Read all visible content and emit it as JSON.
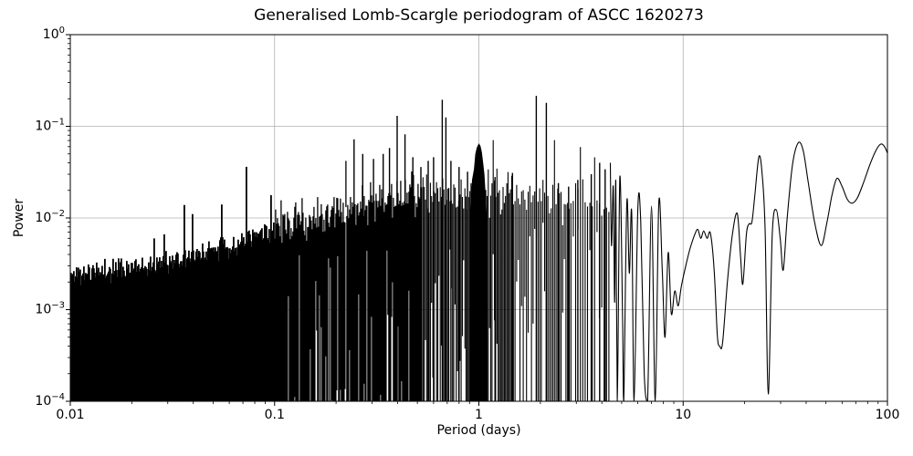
{
  "chart_data": {
    "type": "line",
    "title": "Generalised Lomb-Scargle periodogram of ASCC 1620273",
    "xlabel": "Period (days)",
    "ylabel": "Power",
    "x_scale": "log",
    "y_scale": "log",
    "xlim": [
      0.01,
      100
    ],
    "ylim": [
      0.0001,
      1
    ],
    "grid": true,
    "legend": null,
    "line_color": "#000000",
    "grid_color": "#b0b0b0",
    "background": "#ffffff",
    "x_ticks": {
      "values": [
        0.01,
        0.1,
        1,
        10,
        100
      ],
      "labels": [
        "0.01",
        "0.1",
        "1",
        "10",
        "100"
      ]
    },
    "y_ticks": {
      "exponents": [
        0,
        -1,
        -2,
        -3,
        -4
      ],
      "labels": [
        "0",
        "−1",
        "−2",
        "−3",
        "−4"
      ]
    },
    "noise": {
      "seed": 11,
      "range_days": [
        0.01,
        4.35
      ],
      "envelope_log10": [
        [
          -2.0,
          -2.62
        ],
        [
          -1.8,
          -2.56
        ],
        [
          -1.6,
          -2.5
        ],
        [
          -1.4,
          -2.4
        ],
        [
          -1.2,
          -2.3
        ],
        [
          -1.0,
          -2.12
        ],
        [
          -0.8,
          -1.98
        ],
        [
          -0.6,
          -1.86
        ],
        [
          -0.45,
          -1.8
        ],
        [
          -0.3,
          -1.76
        ],
        [
          -0.15,
          -1.74
        ],
        [
          0.0,
          -1.74
        ],
        [
          0.15,
          -1.78
        ],
        [
          0.3,
          -1.8
        ],
        [
          0.42,
          -1.86
        ],
        [
          0.52,
          -1.8
        ],
        [
          0.638,
          -1.92
        ]
      ]
    },
    "major_peaks": [
      [
        0.245,
        0.072
      ],
      [
        0.27,
        0.05
      ],
      [
        0.305,
        0.044
      ],
      [
        0.34,
        0.05
      ],
      [
        0.365,
        0.058
      ],
      [
        0.398,
        0.13
      ],
      [
        0.435,
        0.082
      ],
      [
        0.475,
        0.046
      ],
      [
        0.52,
        0.036
      ],
      [
        0.565,
        0.042
      ],
      [
        0.6,
        0.046
      ],
      [
        0.662,
        0.195
      ],
      [
        0.69,
        0.125
      ],
      [
        0.73,
        0.042
      ],
      [
        0.8,
        0.036
      ],
      [
        0.88,
        0.032
      ],
      [
        1.2,
        0.028
      ],
      [
        1.46,
        0.031
      ],
      [
        1.91,
        0.215
      ],
      [
        2.14,
        0.18
      ],
      [
        2.45,
        0.024
      ],
      [
        2.75,
        0.022
      ],
      [
        3.05,
        0.026
      ],
      [
        3.55,
        0.03
      ],
      [
        3.9,
        0.04
      ],
      [
        4.15,
        0.034
      ]
    ],
    "one_day_alias_feature": [
      [
        0.905,
        0.01
      ],
      [
        0.93,
        0.026
      ],
      [
        0.95,
        0.034
      ],
      [
        0.965,
        0.05
      ],
      [
        0.98,
        0.058
      ],
      [
        1.0,
        0.064
      ],
      [
        1.015,
        0.061
      ],
      [
        1.03,
        0.052
      ],
      [
        1.045,
        0.04
      ],
      [
        1.06,
        0.03
      ],
      [
        1.075,
        0.018
      ],
      [
        1.09,
        0.01
      ]
    ],
    "smooth_tail": [
      [
        4.4,
        0.04
      ],
      [
        4.46,
        0.005
      ],
      [
        4.55,
        0.022
      ],
      [
        4.62,
        0.0012
      ],
      [
        4.68,
        0.025
      ],
      [
        4.76,
        0.0001
      ],
      [
        4.9,
        0.028
      ],
      [
        5.05,
        0.0008
      ],
      [
        5.12,
        0.0001
      ],
      [
        5.3,
        0.015
      ],
      [
        5.45,
        0.0025
      ],
      [
        5.6,
        0.0115
      ],
      [
        5.75,
        0.0001
      ],
      [
        6.0,
        0.0125
      ],
      [
        6.2,
        0.0091
      ],
      [
        6.45,
        0.0002
      ],
      [
        6.7,
        0.0001
      ],
      [
        7.0,
        0.0135
      ],
      [
        7.3,
        0.0001
      ],
      [
        7.6,
        0.0148
      ],
      [
        7.9,
        0.0028
      ],
      [
        8.15,
        0.0005
      ],
      [
        8.45,
        0.0042
      ],
      [
        8.75,
        0.0009
      ],
      [
        9.1,
        0.0016
      ],
      [
        9.45,
        0.0011
      ],
      [
        9.8,
        0.0018
      ],
      [
        10.3,
        0.003
      ],
      [
        10.8,
        0.0046
      ],
      [
        11.4,
        0.0066
      ],
      [
        11.8,
        0.0075
      ],
      [
        12.2,
        0.006
      ],
      [
        12.6,
        0.0072
      ],
      [
        13.1,
        0.006
      ],
      [
        13.6,
        0.0068
      ],
      [
        14.2,
        0.0026
      ],
      [
        14.7,
        0.00052
      ],
      [
        15.1,
        0.0004
      ],
      [
        15.6,
        0.00044
      ],
      [
        16.5,
        0.0021
      ],
      [
        17.4,
        0.0065
      ],
      [
        18.4,
        0.0112
      ],
      [
        19.1,
        0.0038
      ],
      [
        19.6,
        0.0019
      ],
      [
        20.4,
        0.0066
      ],
      [
        21.0,
        0.0086
      ],
      [
        21.7,
        0.009
      ],
      [
        22.4,
        0.017
      ],
      [
        23.5,
        0.047
      ],
      [
        24.4,
        0.029
      ],
      [
        25.2,
        0.007
      ],
      [
        26.1,
        0.00012
      ],
      [
        27.3,
        0.0065
      ],
      [
        28.6,
        0.0122
      ],
      [
        29.9,
        0.0058
      ],
      [
        30.9,
        0.0027
      ],
      [
        32.3,
        0.01
      ],
      [
        34.3,
        0.038
      ],
      [
        36.6,
        0.066
      ],
      [
        38.7,
        0.054
      ],
      [
        41.0,
        0.024
      ],
      [
        44.0,
        0.009
      ],
      [
        47.4,
        0.005
      ],
      [
        50.6,
        0.009
      ],
      [
        53.6,
        0.018
      ],
      [
        56.6,
        0.027
      ],
      [
        60.0,
        0.022
      ],
      [
        63.6,
        0.016
      ],
      [
        67.1,
        0.0145
      ],
      [
        71.2,
        0.0165
      ],
      [
        76.2,
        0.024
      ],
      [
        82.0,
        0.038
      ],
      [
        88.0,
        0.055
      ],
      [
        92.8,
        0.064
      ],
      [
        96.8,
        0.06
      ],
      [
        100,
        0.051
      ]
    ]
  }
}
